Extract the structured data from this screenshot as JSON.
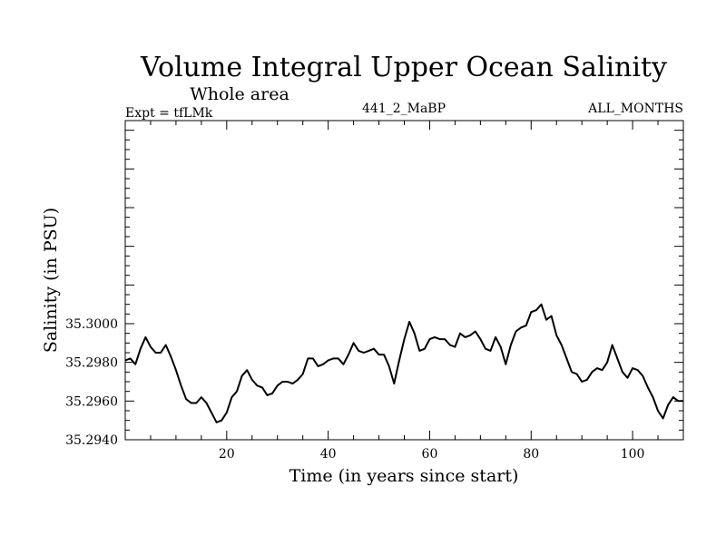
{
  "chart_data": {
    "type": "line",
    "title": "Volume Integral Upper Ocean Salinity",
    "subtitle": "Whole area",
    "left_label": "Expt = tfLMk",
    "center_label": "441_2_MaBP",
    "right_label": "ALL_MONTHS",
    "xlabel": "Time (in years since start)",
    "ylabel": "Salinity (in PSU)",
    "xlim": [
      0,
      110
    ],
    "ylim": [
      35.294,
      35.3105
    ],
    "x_major_ticks": [
      20,
      40,
      60,
      80,
      100
    ],
    "x_tick_labels": [
      "20",
      "40",
      "60",
      "80",
      "100"
    ],
    "y_major_ticks": [
      35.294,
      35.296,
      35.298,
      35.3
    ],
    "y_tick_labels": [
      "35.2940",
      "35.2960",
      "35.2980",
      "35.3000"
    ],
    "grid": false,
    "line_color": "#000000",
    "series": [
      {
        "name": "Salinity",
        "x": [
          0,
          1,
          2,
          3,
          4,
          5,
          6,
          7,
          8,
          9,
          10,
          11,
          12,
          13,
          14,
          15,
          16,
          17,
          18,
          19,
          20,
          21,
          22,
          23,
          24,
          25,
          26,
          27,
          28,
          29,
          30,
          31,
          32,
          33,
          34,
          35,
          36,
          37,
          38,
          39,
          40,
          41,
          42,
          43,
          44,
          45,
          46,
          47,
          48,
          49,
          50,
          51,
          52,
          53,
          54,
          55,
          56,
          57,
          58,
          59,
          60,
          61,
          62,
          63,
          64,
          65,
          66,
          67,
          68,
          69,
          70,
          71,
          72,
          73,
          74,
          75,
          76,
          77,
          78,
          79,
          80,
          81,
          82,
          83,
          84,
          85,
          86,
          87,
          88,
          89,
          90,
          91,
          92,
          93,
          94,
          95,
          96,
          97,
          98,
          99,
          100,
          101,
          102,
          103,
          104,
          105,
          106,
          107,
          108,
          109,
          110
        ],
        "values": [
          35.2981,
          35.2982,
          35.2979,
          35.2987,
          35.2993,
          35.2988,
          35.2985,
          35.2985,
          35.2989,
          35.2983,
          35.2976,
          35.2968,
          35.2961,
          35.2959,
          35.2959,
          35.2962,
          35.2959,
          35.2954,
          35.2949,
          35.295,
          35.2954,
          35.2962,
          35.2965,
          35.2973,
          35.2976,
          35.2971,
          35.2968,
          35.2967,
          35.2963,
          35.2964,
          35.2968,
          35.297,
          35.297,
          35.2969,
          35.2971,
          35.2974,
          35.2982,
          35.2982,
          35.2978,
          35.2979,
          35.2981,
          35.2982,
          35.2982,
          35.2979,
          35.2984,
          35.299,
          35.2986,
          35.2985,
          35.2986,
          35.2987,
          35.2984,
          35.2984,
          35.2978,
          35.2969,
          35.2981,
          35.2992,
          35.3001,
          35.2995,
          35.2986,
          35.2987,
          35.2992,
          35.2993,
          35.2992,
          35.2992,
          35.2989,
          35.2988,
          35.2995,
          35.2993,
          35.2994,
          35.2996,
          35.2992,
          35.2987,
          35.2986,
          35.2993,
          35.2988,
          35.2979,
          35.2989,
          35.2996,
          35.2998,
          35.2999,
          35.3006,
          35.3007,
          35.301,
          35.3002,
          35.3004,
          35.2994,
          35.2989,
          35.2982,
          35.2975,
          35.2974,
          35.297,
          35.2971,
          35.2975,
          35.2977,
          35.2976,
          35.298,
          35.2989,
          35.2982,
          35.2975,
          35.2972,
          35.2977,
          35.2976,
          35.2973,
          35.2967,
          35.2962,
          35.2955,
          35.2951,
          35.2958,
          35.2962,
          35.296,
          35.296
        ]
      }
    ]
  }
}
